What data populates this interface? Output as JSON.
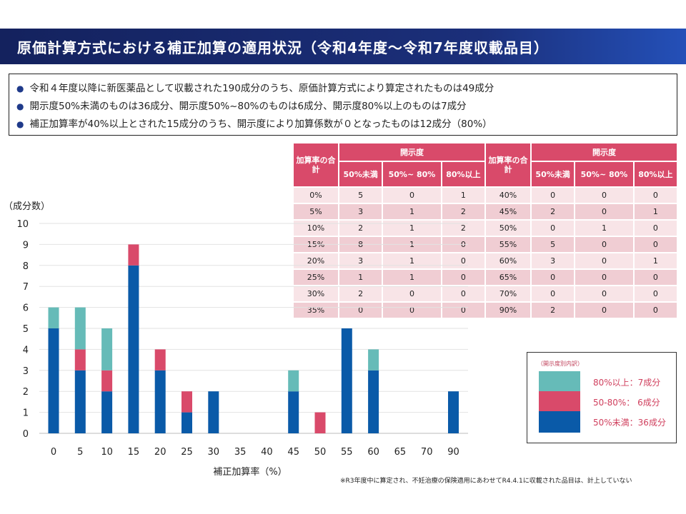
{
  "title": "原価計算方式における補正加算の適用状況（令和4年度～令和7年度収載品目）",
  "bullets": [
    "令和４年度以降に新医薬品として収載された190成分のうち、原価計算方式により算定されたものは49成分",
    "開示度50%未満のものは36成分、開示度50%~80%のものは6成分、開示度80%以上のものは7成分",
    "補正加算率が40%以上とされた15成分のうち、開示度により加算係数が０となったものは12成分（80%）"
  ],
  "bullet_mark": "●",
  "table": {
    "rate_header": "加算率の合計",
    "disclosure_header": "開示度",
    "subheaders": [
      "50%未満",
      "50%~ 80%",
      "80%以上"
    ],
    "left": [
      [
        "0%",
        "5",
        "0",
        "1"
      ],
      [
        "5%",
        "3",
        "1",
        "2"
      ],
      [
        "10%",
        "2",
        "1",
        "2"
      ],
      [
        "15%",
        "8",
        "1",
        "0"
      ],
      [
        "20%",
        "3",
        "1",
        "0"
      ],
      [
        "25%",
        "1",
        "1",
        "0"
      ],
      [
        "30%",
        "2",
        "0",
        "0"
      ],
      [
        "35%",
        "0",
        "0",
        "0"
      ]
    ],
    "right": [
      [
        "40%",
        "0",
        "0",
        "0"
      ],
      [
        "45%",
        "2",
        "0",
        "1"
      ],
      [
        "50%",
        "0",
        "1",
        "0"
      ],
      [
        "55%",
        "5",
        "0",
        "0"
      ],
      [
        "60%",
        "3",
        "0",
        "1"
      ],
      [
        "65%",
        "0",
        "0",
        "0"
      ],
      [
        "70%",
        "0",
        "0",
        "0"
      ],
      [
        "90%",
        "2",
        "0",
        "0"
      ]
    ]
  },
  "legend": {
    "title": "（開示度別内訳）",
    "items": [
      "80%以上：7成分",
      "50-80%： 6成分",
      "50%未満：36成分"
    ]
  },
  "note": "※R3年度中に算定され、不妊治療の保険適用にあわせてR4.4.1に収載された品目は、計上していない",
  "colors": {
    "low": "#0a5aa8",
    "mid": "#d94a6a",
    "high": "#66bbb8"
  },
  "chart_data": {
    "type": "bar",
    "stacked": true,
    "ylabel": "（成分数）",
    "xlabel": "補正加算率（%）",
    "ylim": [
      0,
      10
    ],
    "yticks": [
      "0",
      "1",
      "2",
      "3",
      "4",
      "5",
      "6",
      "7",
      "8",
      "9",
      "10"
    ],
    "categories": [
      "0",
      "5",
      "10",
      "15",
      "20",
      "25",
      "30",
      "35",
      "40",
      "45",
      "50",
      "55",
      "60",
      "65",
      "70",
      "90"
    ],
    "series": [
      {
        "name": "50%未満",
        "values": [
          5,
          3,
          2,
          8,
          3,
          1,
          2,
          0,
          0,
          2,
          0,
          5,
          3,
          0,
          0,
          2
        ]
      },
      {
        "name": "50-80%",
        "values": [
          0,
          1,
          1,
          1,
          1,
          1,
          0,
          0,
          0,
          0,
          1,
          0,
          0,
          0,
          0,
          0
        ]
      },
      {
        "name": "80%以上",
        "values": [
          1,
          2,
          2,
          0,
          0,
          0,
          0,
          0,
          0,
          1,
          0,
          0,
          1,
          0,
          0,
          0
        ]
      }
    ],
    "grid": true
  }
}
